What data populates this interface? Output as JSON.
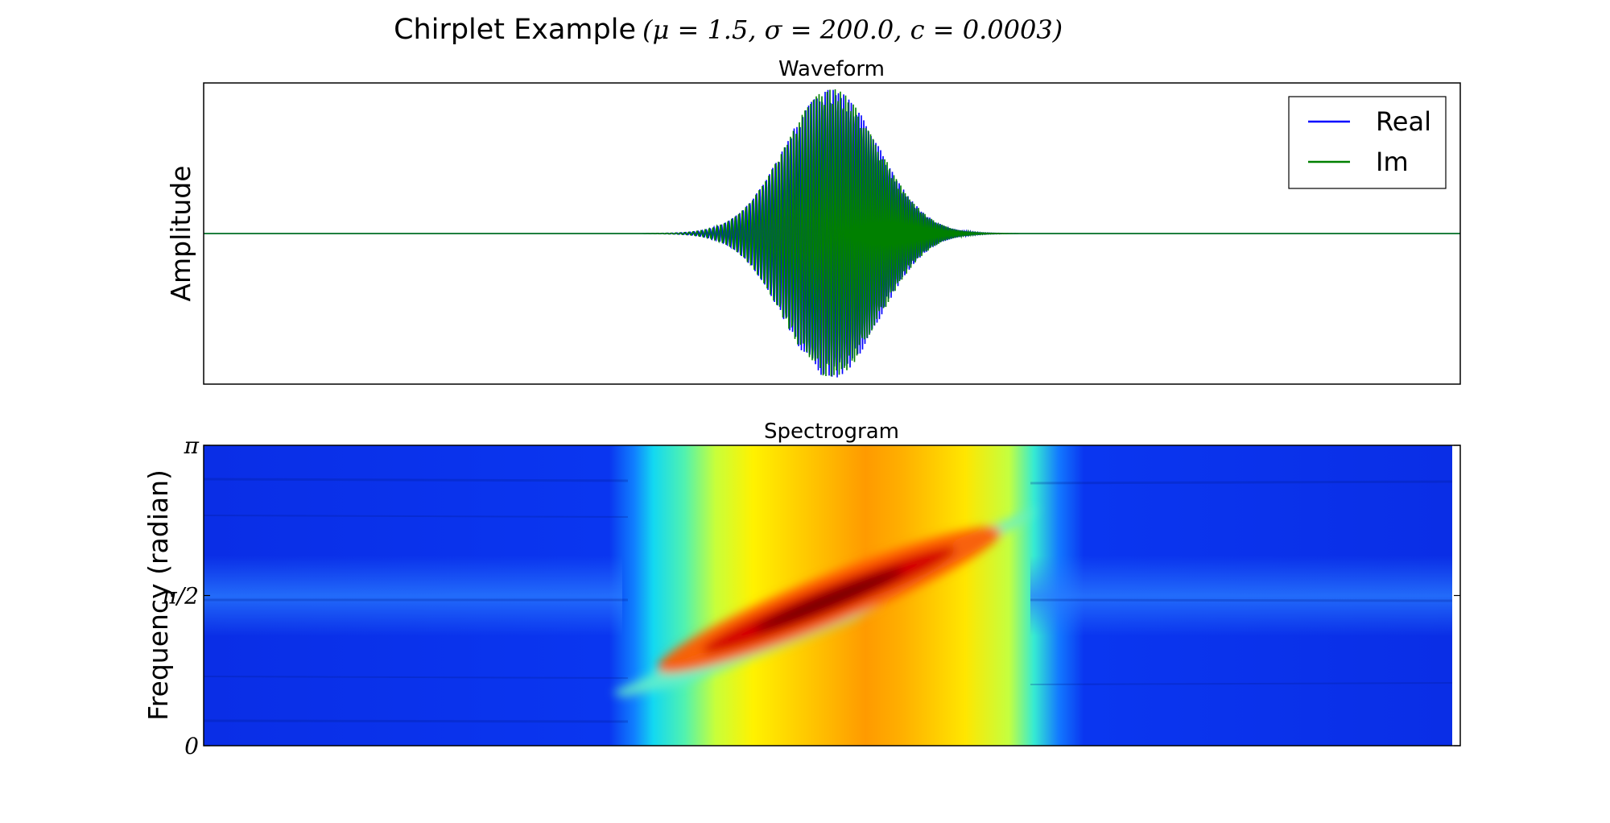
{
  "title": {
    "text": "Chirplet Example",
    "params": "(μ = 1.5, σ = 200.0, c = 0.0003)"
  },
  "chart_data": [
    {
      "type": "line",
      "title": "Waveform",
      "xlabel": "",
      "ylabel": "Amplitude",
      "legend_position": "top-right",
      "grid": false,
      "x_ticks_shown": false,
      "y_ticks_shown": false,
      "envelope": {
        "center": 1.5,
        "sigma": 200.0,
        "chirp_rate": 0.0003
      },
      "series": [
        {
          "name": "Real",
          "color": "#0000ff"
        },
        {
          "name": "Im",
          "color": "#008000"
        }
      ]
    },
    {
      "type": "heatmap",
      "title": "Spectrogram",
      "xlabel": "",
      "ylabel": "Frequency (radian)",
      "ylim": [
        0,
        3.1416
      ],
      "y_ticks": [
        {
          "value": 0,
          "label": "0"
        },
        {
          "value": 1.5708,
          "label": "π/2"
        },
        {
          "value": 3.1416,
          "label": "π"
        }
      ],
      "colormap": "jet",
      "grid": false
    }
  ]
}
